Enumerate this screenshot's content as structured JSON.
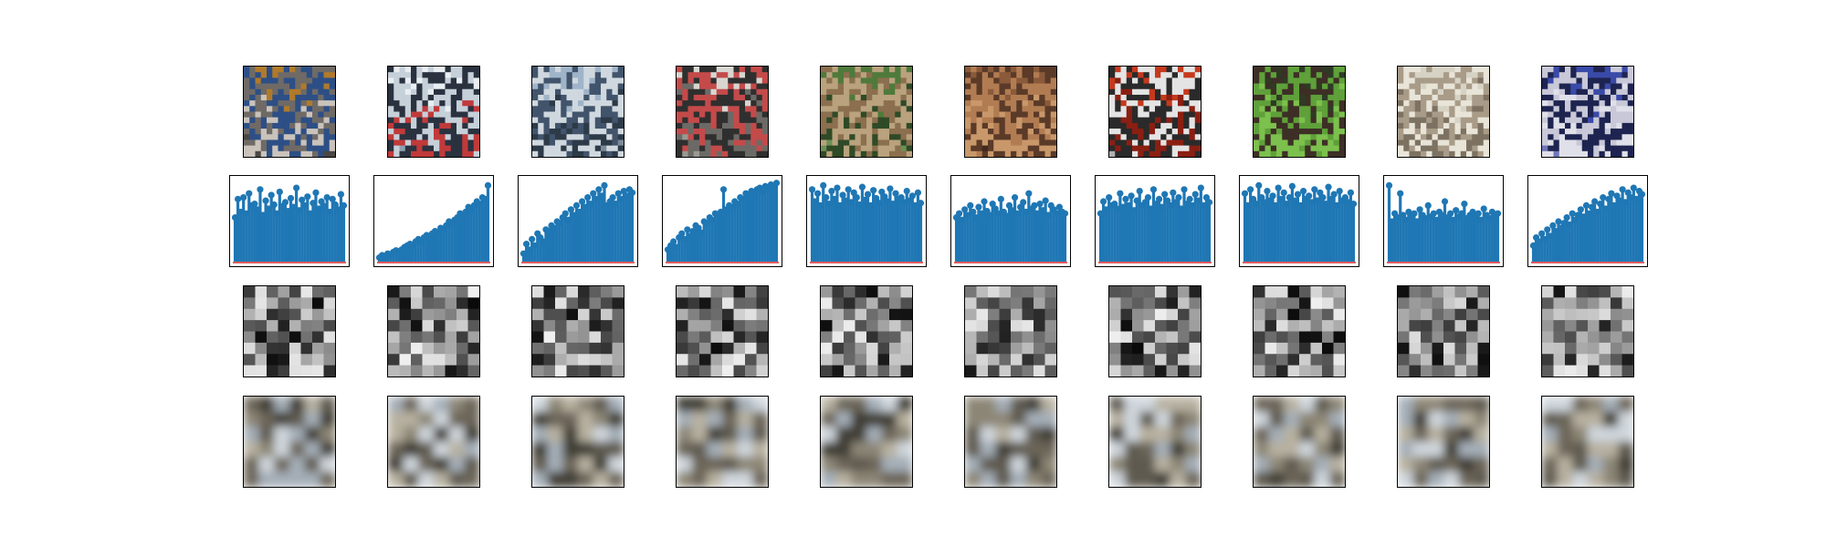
{
  "figure": {
    "rows": [
      {
        "name": "original-image"
      },
      {
        "name": "latent-stem-plot"
      },
      {
        "name": "grayscale-latent-grid"
      },
      {
        "name": "reconstructed-image"
      }
    ],
    "columns": 10,
    "accent_color": "#1f77b4",
    "baseline_color": "#d62728"
  },
  "chart_data": {
    "type": "stem",
    "title": "",
    "xlabel": "",
    "ylabel": "",
    "grid": false,
    "series": [
      {
        "values": [
          0.55,
          0.78,
          0.62,
          0.8,
          0.6,
          0.85,
          0.7,
          0.72,
          0.65,
          0.9,
          0.58,
          0.76,
          0.66,
          0.83,
          0.71,
          0.6,
          0.87,
          0.69,
          0.74,
          0.63,
          0.79,
          0.68,
          0.92,
          0.64,
          0.77,
          0.7,
          0.81,
          0.6,
          0.73,
          0.86,
          0.66,
          0.75,
          0.69,
          0.8,
          0.62,
          0.78,
          0.71,
          0.65,
          0.84,
          0.7
        ]
      },
      {
        "values": [
          0.05,
          0.08,
          0.06,
          0.1,
          0.09,
          0.12,
          0.14,
          0.1,
          0.15,
          0.18,
          0.2,
          0.22,
          0.19,
          0.25,
          0.28,
          0.24,
          0.3,
          0.33,
          0.29,
          0.35,
          0.38,
          0.36,
          0.42,
          0.4,
          0.45,
          0.5,
          0.47,
          0.52,
          0.55,
          0.6,
          0.57,
          0.62,
          0.68,
          0.64,
          0.7,
          0.75,
          0.72,
          0.8,
          0.78,
          0.95
        ]
      },
      {
        "values": [
          0.1,
          0.22,
          0.15,
          0.28,
          0.2,
          0.35,
          0.3,
          0.25,
          0.4,
          0.38,
          0.45,
          0.42,
          0.5,
          0.48,
          0.55,
          0.6,
          0.52,
          0.65,
          0.58,
          0.7,
          0.62,
          0.75,
          0.68,
          0.8,
          0.72,
          0.85,
          0.78,
          0.9,
          0.82,
          0.95,
          0.7,
          0.75,
          0.8,
          0.72,
          0.85,
          0.78,
          0.88,
          0.82,
          0.9,
          0.86
        ]
      },
      {
        "values": [
          0.15,
          0.2,
          0.25,
          0.18,
          0.3,
          0.35,
          0.28,
          0.4,
          0.32,
          0.38,
          0.45,
          0.42,
          0.36,
          0.5,
          0.48,
          0.55,
          0.52,
          0.6,
          0.58,
          0.62,
          0.9,
          0.65,
          0.7,
          0.68,
          0.75,
          0.72,
          0.8,
          0.78,
          0.85,
          0.82,
          0.88,
          0.86,
          0.9,
          0.92,
          0.87,
          0.94,
          0.9,
          0.96,
          0.93,
          0.98
        ]
      },
      {
        "values": [
          0.9,
          0.75,
          0.85,
          0.7,
          0.95,
          0.8,
          0.72,
          0.88,
          0.78,
          0.92,
          0.7,
          0.83,
          0.76,
          0.9,
          0.74,
          0.86,
          0.8,
          0.71,
          0.93,
          0.77,
          0.84,
          0.7,
          0.89,
          0.79,
          0.73,
          0.87,
          0.81,
          0.75,
          0.91,
          0.72,
          0.85,
          0.78,
          0.8,
          0.74,
          0.88,
          0.76,
          0.82,
          0.7,
          0.86,
          0.73
        ]
      },
      {
        "values": [
          0.55,
          0.6,
          0.52,
          0.65,
          0.58,
          0.7,
          0.62,
          0.55,
          0.68,
          0.6,
          0.75,
          0.63,
          0.58,
          0.72,
          0.66,
          0.6,
          0.78,
          0.62,
          0.57,
          0.7,
          0.64,
          0.8,
          0.6,
          0.68,
          0.74,
          0.62,
          0.85,
          0.66,
          0.7,
          0.6,
          0.72,
          0.64,
          0.76,
          0.58,
          0.7,
          0.65,
          0.6,
          0.68,
          0.62,
          0.6
        ]
      },
      {
        "values": [
          0.6,
          0.75,
          0.65,
          0.8,
          0.7,
          0.72,
          0.66,
          0.85,
          0.68,
          0.78,
          0.7,
          0.82,
          0.64,
          0.76,
          0.88,
          0.7,
          0.74,
          0.8,
          0.66,
          0.9,
          0.72,
          0.78,
          0.68,
          0.84,
          0.76,
          0.7,
          0.86,
          0.74,
          0.8,
          0.66,
          0.9,
          0.72,
          0.78,
          0.7,
          0.84,
          0.76,
          0.92,
          0.7,
          0.8,
          0.74
        ]
      },
      {
        "values": [
          0.85,
          0.7,
          0.9,
          0.78,
          0.72,
          0.95,
          0.8,
          0.74,
          0.88,
          0.76,
          0.82,
          0.7,
          0.92,
          0.78,
          0.86,
          0.72,
          0.8,
          0.94,
          0.76,
          0.84,
          0.7,
          0.88,
          0.78,
          0.82,
          0.74,
          0.9,
          0.76,
          0.86,
          0.8,
          0.72,
          0.93,
          0.78,
          0.84,
          0.7,
          0.88,
          0.76,
          0.8,
          0.74,
          0.86,
          0.72
        ]
      },
      {
        "values": [
          0.95,
          0.5,
          0.6,
          0.55,
          0.85,
          0.58,
          0.52,
          0.62,
          0.56,
          0.6,
          0.5,
          0.65,
          0.58,
          0.54,
          0.7,
          0.56,
          0.6,
          0.52,
          0.62,
          0.58,
          0.75,
          0.55,
          0.6,
          0.52,
          0.64,
          0.56,
          0.6,
          0.72,
          0.54,
          0.58,
          0.62,
          0.56,
          0.6,
          0.52,
          0.66,
          0.58,
          0.54,
          0.62,
          0.56,
          0.6
        ]
      },
      {
        "values": [
          0.2,
          0.3,
          0.25,
          0.35,
          0.28,
          0.4,
          0.32,
          0.45,
          0.38,
          0.5,
          0.42,
          0.48,
          0.55,
          0.46,
          0.6,
          0.52,
          0.58,
          0.65,
          0.56,
          0.7,
          0.6,
          0.68,
          0.75,
          0.62,
          0.72,
          0.8,
          0.66,
          0.78,
          0.85,
          0.7,
          0.82,
          0.76,
          0.9,
          0.74,
          0.86,
          0.8,
          0.92,
          0.78,
          0.88,
          0.84
        ]
      }
    ]
  }
}
